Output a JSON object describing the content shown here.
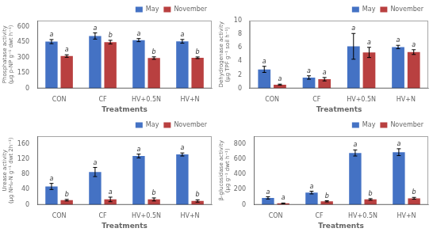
{
  "chart_data": [
    {
      "type": "bar",
      "categories": [
        "CON",
        "CF",
        "HV+0.5N",
        "HV+N"
      ],
      "xlabel": "Treatments",
      "ylabel": "Phosphatase activity\n(μg p-NP g⁻¹ dwt h⁻¹)",
      "ylim": [
        0,
        660
      ],
      "yticks": [
        0,
        150,
        300,
        450,
        600
      ],
      "grid": false,
      "legend": "upper right",
      "series": [
        {
          "name": "May",
          "color": "#4472C4",
          "values": [
            455,
            510,
            470,
            458
          ],
          "errors": [
            20,
            30,
            15,
            18
          ],
          "annotations": [
            "a",
            "a",
            "a",
            "a"
          ]
        },
        {
          "name": "November",
          "color": "#B94040",
          "values": [
            315,
            450,
            295,
            298
          ],
          "errors": [
            12,
            18,
            12,
            8
          ],
          "annotations": [
            "a",
            "b",
            "b",
            "b"
          ]
        }
      ]
    },
    {
      "type": "bar",
      "categories": [
        "CON",
        "CF",
        "HV+0.5N",
        "HV+N"
      ],
      "xlabel": "Treatments",
      "ylabel": "Dehydrogenase activity\n(μg TPF g⁻¹ soil h⁻¹)",
      "ylim": [
        0,
        10
      ],
      "yticks": [
        0,
        2,
        4,
        6,
        8,
        10
      ],
      "grid": false,
      "legend": "upper right",
      "series": [
        {
          "name": "May",
          "color": "#4472C4",
          "values": [
            2.8,
            1.6,
            6.2,
            6.1
          ],
          "errors": [
            0.45,
            0.25,
            1.9,
            0.25
          ],
          "annotations": [
            "a",
            "a",
            "a",
            "a"
          ]
        },
        {
          "name": "November",
          "color": "#B94040",
          "values": [
            0.55,
            1.35,
            5.3,
            5.35
          ],
          "errors": [
            0.08,
            0.25,
            0.75,
            0.35
          ],
          "annotations": [
            "a",
            "a",
            "a",
            "a"
          ]
        }
      ]
    },
    {
      "type": "bar",
      "categories": [
        "CON",
        "CF",
        "HV+0.5N",
        "HV+N"
      ],
      "xlabel": "Treatments",
      "ylabel": "Urease activity\n(μg NH₄-N g⁻¹ dwt 2h⁻¹)",
      "ylim": [
        0,
        180
      ],
      "yticks": [
        0,
        40,
        80,
        120,
        160
      ],
      "grid": false,
      "legend": "upper right",
      "series": [
        {
          "name": "May",
          "color": "#4472C4",
          "values": [
            48,
            86,
            128,
            132
          ],
          "errors": [
            8,
            12,
            5,
            4
          ],
          "annotations": [
            "a",
            "a",
            "a",
            "a"
          ]
        },
        {
          "name": "November",
          "color": "#B94040",
          "values": [
            12,
            14,
            14,
            10
          ],
          "errors": [
            2,
            6,
            4,
            3
          ],
          "annotations": [
            "b",
            "a",
            "b",
            "b"
          ]
        }
      ]
    },
    {
      "type": "bar",
      "categories": [
        "CON",
        "CF",
        "HV+0.5N",
        "HV+N"
      ],
      "xlabel": "Treatments",
      "ylabel": "β-glucosidase activity\n(μg g⁻¹ dwt h⁻¹)",
      "ylim": [
        0,
        900
      ],
      "yticks": [
        0,
        200,
        400,
        600,
        800
      ],
      "grid": false,
      "legend": "upper right",
      "series": [
        {
          "name": "May",
          "color": "#4472C4",
          "values": [
            90,
            160,
            680,
            690
          ],
          "errors": [
            15,
            18,
            40,
            45
          ],
          "annotations": [
            "a",
            "a",
            "a",
            "a"
          ]
        },
        {
          "name": "November",
          "color": "#B94040",
          "values": [
            18,
            45,
            70,
            85
          ],
          "errors": [
            5,
            8,
            10,
            12
          ],
          "annotations": [
            "a",
            "b",
            "b",
            "b"
          ]
        }
      ]
    }
  ]
}
